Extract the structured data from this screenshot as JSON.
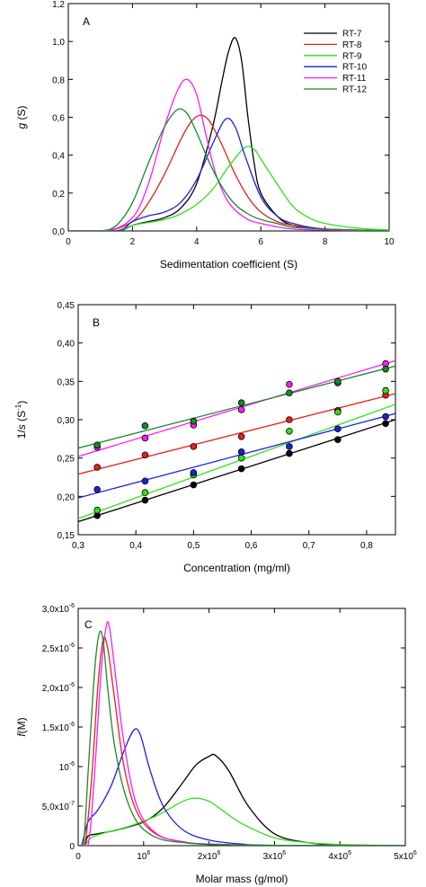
{
  "chart_data": [
    {
      "type": "line",
      "panel": "A",
      "xlabel": "Sedimentation coefficient (S)",
      "ylabel_italic": "g",
      "ylabel_rest": " (S)",
      "xlim": [
        0,
        10
      ],
      "ylim": [
        0,
        1.2
      ],
      "xticks": [
        {
          "value": 0,
          "label": "0"
        },
        {
          "value": 2,
          "label": "2"
        },
        {
          "value": 4,
          "label": "4"
        },
        {
          "value": 6,
          "label": "6"
        },
        {
          "value": 8,
          "label": "8"
        },
        {
          "value": 10,
          "label": "10"
        }
      ],
      "yticks": [
        {
          "value": 0,
          "label": "0,0"
        },
        {
          "value": 0.2,
          "label": "0,2"
        },
        {
          "value": 0.4,
          "label": "0,4"
        },
        {
          "value": 0.6,
          "label": "0,6"
        },
        {
          "value": 0.8,
          "label": "0,8"
        },
        {
          "value": 1.0,
          "label": "1,0"
        },
        {
          "value": 1.2,
          "label": "1,2"
        }
      ],
      "legend_position": "top-right",
      "series": [
        {
          "name": "RT-7",
          "color": "#000000",
          "x": [
            0,
            1.5,
            2.0,
            2.5,
            3.0,
            3.5,
            4.0,
            4.5,
            4.8,
            5.0,
            5.2,
            5.4,
            5.6,
            5.8,
            6.0,
            6.5,
            7.0,
            8.0,
            10.0
          ],
          "y": [
            0,
            0,
            0.03,
            0.05,
            0.07,
            0.12,
            0.25,
            0.55,
            0.8,
            0.95,
            1.02,
            0.9,
            0.6,
            0.35,
            0.2,
            0.08,
            0.03,
            0.01,
            0
          ]
        },
        {
          "name": "RT-8",
          "color": "#e8201a",
          "x": [
            0,
            1.2,
            2.0,
            2.5,
            3.0,
            3.5,
            3.8,
            4.1,
            4.4,
            4.8,
            5.2,
            5.6,
            6.0,
            6.5,
            7.0,
            8.0,
            10.0
          ],
          "y": [
            0,
            0,
            0.05,
            0.15,
            0.3,
            0.48,
            0.57,
            0.61,
            0.58,
            0.45,
            0.3,
            0.18,
            0.1,
            0.05,
            0.03,
            0.01,
            0
          ]
        },
        {
          "name": "RT-9",
          "color": "#33e01a",
          "x": [
            0,
            1.5,
            2.0,
            3.0,
            3.5,
            4.0,
            4.5,
            5.0,
            5.5,
            5.8,
            6.0,
            6.5,
            7.0,
            7.5,
            8.0,
            9.0,
            10.0
          ],
          "y": [
            0,
            0,
            0.03,
            0.06,
            0.09,
            0.14,
            0.22,
            0.34,
            0.44,
            0.43,
            0.38,
            0.25,
            0.13,
            0.07,
            0.04,
            0.015,
            0.005
          ]
        },
        {
          "name": "RT-10",
          "color": "#1a22d8",
          "x": [
            0,
            1.5,
            2.0,
            2.5,
            3.0,
            3.5,
            4.0,
            4.5,
            4.9,
            5.2,
            5.5,
            6.0,
            6.5,
            7.0,
            8.0,
            10.0
          ],
          "y": [
            0,
            0,
            0.05,
            0.08,
            0.1,
            0.15,
            0.27,
            0.46,
            0.59,
            0.55,
            0.4,
            0.18,
            0.08,
            0.04,
            0.01,
            0
          ]
        },
        {
          "name": "RT-11",
          "color": "#ff1aff",
          "x": [
            0,
            1.2,
            2.0,
            2.5,
            3.0,
            3.4,
            3.7,
            4.0,
            4.3,
            4.6,
            5.0,
            5.5,
            6.0,
            7.0,
            8.0,
            10.0
          ],
          "y": [
            0,
            0,
            0.07,
            0.25,
            0.55,
            0.74,
            0.8,
            0.72,
            0.5,
            0.3,
            0.15,
            0.07,
            0.04,
            0.01,
            0.005,
            0
          ]
        },
        {
          "name": "RT-12",
          "color": "#178a2a",
          "x": [
            0,
            1.0,
            1.5,
            2.0,
            2.5,
            3.0,
            3.4,
            3.7,
            4.0,
            4.4,
            4.8,
            5.2,
            5.6,
            6.0,
            6.5,
            7.0,
            8.0,
            10.0
          ],
          "y": [
            0,
            0,
            0.03,
            0.15,
            0.36,
            0.55,
            0.64,
            0.62,
            0.52,
            0.36,
            0.23,
            0.14,
            0.09,
            0.06,
            0.04,
            0.02,
            0.01,
            0
          ]
        }
      ]
    },
    {
      "type": "scatter",
      "panel": "B",
      "xlabel": "Concentration (mg/ml)",
      "ylabel_pre": "1/",
      "ylabel_italic": "s",
      "ylabel_post": " (S",
      "ylabel_sup": "-1",
      "ylabel_end": ")",
      "xlim": [
        0.3,
        0.85
      ],
      "ylim": [
        0.15,
        0.45
      ],
      "xticks": [
        {
          "value": 0.3,
          "label": "0,3"
        },
        {
          "value": 0.4,
          "label": "0,4"
        },
        {
          "value": 0.5,
          "label": "0,5"
        },
        {
          "value": 0.6,
          "label": "0,6"
        },
        {
          "value": 0.7,
          "label": "0,7"
        },
        {
          "value": 0.8,
          "label": "0,8"
        }
      ],
      "yticks": [
        {
          "value": 0.15,
          "label": "0,15"
        },
        {
          "value": 0.2,
          "label": "0,20"
        },
        {
          "value": 0.25,
          "label": "0,25"
        },
        {
          "value": 0.3,
          "label": "0,30"
        },
        {
          "value": 0.35,
          "label": "0,35"
        },
        {
          "value": 0.4,
          "label": "0,40"
        },
        {
          "value": 0.45,
          "label": "0,45"
        }
      ],
      "series": [
        {
          "color": "#000000",
          "x": [
            0.333,
            0.416,
            0.5,
            0.583,
            0.666,
            0.75,
            0.833
          ],
          "y": [
            0.175,
            0.195,
            0.215,
            0.236,
            0.256,
            0.274,
            0.295
          ],
          "fit": [
            [
              0.3,
              0.167
            ],
            [
              0.85,
              0.3
            ]
          ]
        },
        {
          "color": "#e8201a",
          "x": [
            0.333,
            0.416,
            0.5,
            0.583,
            0.666,
            0.75,
            0.833
          ],
          "y": [
            0.238,
            0.254,
            0.265,
            0.278,
            0.3,
            0.312,
            0.332
          ],
          "fit": [
            [
              0.3,
              0.229
            ],
            [
              0.85,
              0.334
            ]
          ]
        },
        {
          "color": "#33e01a",
          "x": [
            0.333,
            0.416,
            0.5,
            0.583,
            0.666,
            0.75,
            0.833
          ],
          "y": [
            0.182,
            0.205,
            0.228,
            0.25,
            0.285,
            0.31,
            0.338
          ],
          "fit": [
            [
              0.3,
              0.171
            ],
            [
              0.85,
              0.32
            ]
          ]
        },
        {
          "color": "#1a22d8",
          "x": [
            0.333,
            0.416,
            0.5,
            0.583,
            0.666,
            0.75,
            0.833
          ],
          "y": [
            0.209,
            0.22,
            0.231,
            0.258,
            0.265,
            0.288,
            0.304
          ],
          "fit": [
            [
              0.3,
              0.198
            ],
            [
              0.85,
              0.308
            ]
          ]
        },
        {
          "color": "#ff1aff",
          "x": [
            0.333,
            0.416,
            0.5,
            0.583,
            0.666,
            0.75,
            0.833
          ],
          "y": [
            0.264,
            0.276,
            0.293,
            0.313,
            0.346,
            0.348,
            0.373
          ],
          "fit": [
            [
              0.3,
              0.252
            ],
            [
              0.85,
              0.377
            ]
          ]
        },
        {
          "color": "#178a2a",
          "x": [
            0.333,
            0.416,
            0.5,
            0.583,
            0.666,
            0.75,
            0.833
          ],
          "y": [
            0.267,
            0.292,
            0.298,
            0.322,
            0.335,
            0.35,
            0.366
          ],
          "fit": [
            [
              0.3,
              0.263
            ],
            [
              0.85,
              0.37
            ]
          ]
        }
      ]
    },
    {
      "type": "line",
      "panel": "C",
      "xlabel": "Molar mass (g/mol)",
      "ylabel_italic": "f",
      "ylabel_rest": "(M)",
      "xlim": [
        0,
        5000000
      ],
      "ylim": [
        0,
        3e-06
      ],
      "xticks": [
        {
          "value": 0,
          "label": "0"
        },
        {
          "value": 1000000,
          "label": "10",
          "sup": "6"
        },
        {
          "value": 2000000,
          "label": "2x10",
          "sup": "6"
        },
        {
          "value": 3000000,
          "label": "3x10",
          "sup": "6"
        },
        {
          "value": 4000000,
          "label": "4x10",
          "sup": "6"
        },
        {
          "value": 5000000,
          "label": "5x10",
          "sup": "6"
        }
      ],
      "yticks": [
        {
          "value": 0,
          "label": "0"
        },
        {
          "value": 5e-07,
          "label": "5,0x10",
          "sup": "-7"
        },
        {
          "value": 1e-06,
          "label": "10",
          "sup": "-6"
        },
        {
          "value": 1.5e-06,
          "label": "1,5x10",
          "sup": "-6"
        },
        {
          "value": 2e-06,
          "label": "2,0x10",
          "sup": "-6"
        },
        {
          "value": 2.5e-06,
          "label": "2,5x10",
          "sup": "-6"
        },
        {
          "value": 3e-06,
          "label": "3,0x10",
          "sup": "-6"
        }
      ],
      "series": [
        {
          "color": "#000000",
          "x": [
            0,
            100000,
            150000,
            300000,
            600000,
            1000000,
            1300000,
            1600000,
            1800000,
            2000000,
            2100000,
            2300000,
            2600000,
            3000000,
            3500000,
            4000000,
            5000000
          ],
          "y": [
            0,
            0,
            1.2e-07,
            1.5e-07,
            2e-07,
            3e-07,
            4.8e-07,
            8e-07,
            1.02e-06,
            1.13e-06,
            1.14e-06,
            9.5e-07,
            5e-07,
            1.5e-07,
            4e-08,
            1e-08,
            0
          ]
        },
        {
          "color": "#33e01a",
          "x": [
            0,
            100000,
            200000,
            400000,
            800000,
            1200000,
            1600000,
            1800000,
            2000000,
            2200000,
            2500000,
            3000000,
            3500000,
            4000000,
            5000000
          ],
          "y": [
            0,
            0,
            1e-07,
            1.6e-07,
            2.5e-07,
            3.8e-07,
            5.6e-07,
            6e-07,
            5.6e-07,
            4.5e-07,
            2.8e-07,
            1e-07,
            4e-08,
            1.5e-08,
            0
          ]
        },
        {
          "color": "#1a22d8",
          "x": [
            0,
            50000,
            150000,
            300000,
            500000,
            700000,
            850000,
            950000,
            1100000,
            1300000,
            1600000,
            2000000,
            2500000,
            3000000,
            5000000
          ],
          "y": [
            0,
            0,
            3e-07,
            4.5e-07,
            7.5e-07,
            1.2e-06,
            1.46e-06,
            1.4e-06,
            9.5e-07,
            5e-07,
            2e-07,
            7e-08,
            2e-08,
            5e-09,
            0
          ]
        },
        {
          "color": "#e8201a",
          "x": [
            0,
            100000,
            200000,
            300000,
            380000,
            450000,
            550000,
            700000,
            900000,
            1200000,
            1600000,
            2000000,
            3000000,
            5000000
          ],
          "y": [
            0,
            0,
            8e-07,
            2e-06,
            2.6e-06,
            2.5e-06,
            1.9e-06,
            1e-06,
            4.2e-07,
            1.4e-07,
            5e-08,
            2e-08,
            5e-09,
            0
          ]
        },
        {
          "color": "#ff1aff",
          "x": [
            0,
            150000,
            250000,
            350000,
            430000,
            480000,
            550000,
            700000,
            900000,
            1200000,
            1600000,
            2000000,
            3000000,
            5000000
          ],
          "y": [
            0,
            0,
            9e-07,
            2.2e-06,
            2.78e-06,
            2.75e-06,
            2.3e-06,
            1.3e-06,
            5e-07,
            1.5e-07,
            5e-08,
            2e-08,
            5e-09,
            0
          ]
        },
        {
          "color": "#178a2a",
          "x": [
            0,
            80000,
            150000,
            250000,
            320000,
            380000,
            450000,
            550000,
            700000,
            900000,
            1200000,
            1600000,
            2000000,
            3000000,
            5000000
          ],
          "y": [
            0,
            0,
            9e-07,
            2.2e-06,
            2.68e-06,
            2.6e-06,
            2e-06,
            1.3e-06,
            7e-07,
            3e-07,
            1e-07,
            4e-08,
            1.5e-08,
            5e-09,
            0
          ]
        }
      ]
    }
  ]
}
